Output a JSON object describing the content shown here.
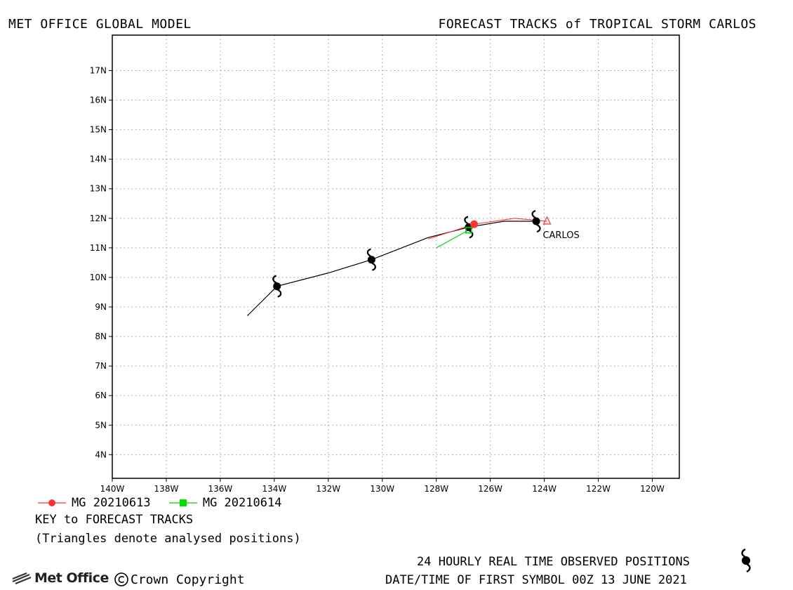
{
  "header": {
    "left_title": "MET OFFICE GLOBAL MODEL",
    "right_title": "FORECAST TRACKS of TROPICAL STORM CARLOS"
  },
  "chart_data": {
    "type": "line",
    "xlim": [
      -140,
      -119
    ],
    "ylim": [
      3.2,
      18.2
    ],
    "x_ticks": [
      -140,
      -138,
      -136,
      -134,
      -132,
      -130,
      -128,
      -126,
      -124,
      -122,
      -120
    ],
    "x_tick_labels": [
      "140W",
      "138W",
      "136W",
      "134W",
      "132W",
      "130W",
      "128W",
      "126W",
      "124W",
      "122W",
      "120W"
    ],
    "y_ticks": [
      4,
      5,
      6,
      7,
      8,
      9,
      10,
      11,
      12,
      13,
      14,
      15,
      16,
      17
    ],
    "y_tick_labels": [
      "4N",
      "5N",
      "6N",
      "7N",
      "8N",
      "9N",
      "10N",
      "11N",
      "12N",
      "13N",
      "14N",
      "15N",
      "16N",
      "17N"
    ],
    "grid": true,
    "observed_track": {
      "x": [
        -124.3,
        -125.5,
        -126.8,
        -128.3,
        -130.4,
        -132.0,
        -133.9,
        -135.0
      ],
      "y": [
        11.9,
        11.9,
        11.7,
        11.35,
        10.6,
        10.15,
        9.7,
        8.7
      ],
      "color": "#000000",
      "symbols": [
        {
          "x": -124.3,
          "y": 11.9
        },
        {
          "x": -126.8,
          "y": 11.7
        },
        {
          "x": -130.4,
          "y": 10.6
        },
        {
          "x": -133.9,
          "y": 9.7
        }
      ]
    },
    "series": [
      {
        "name": "MG 20210613",
        "color": "#ff3333",
        "marker": "circle",
        "x": [
          -123.9,
          -125.1,
          -126.6,
          -128.3
        ],
        "y": [
          11.9,
          12.0,
          11.8,
          11.3
        ],
        "initial": {
          "x": -126.6,
          "y": 11.8
        }
      },
      {
        "name": "MG 20210614",
        "color": "#00cc00",
        "marker": "square",
        "x": [
          -126.8,
          -128.0
        ],
        "y": [
          11.6,
          11.0
        ],
        "initial": {
          "x": -126.8,
          "y": 11.6
        }
      }
    ],
    "analysed_position": {
      "x": -123.9,
      "y": 11.9,
      "label": "CARLOS",
      "color": "#ff3333"
    }
  },
  "key": {
    "line1": "KEY to FORECAST TRACKS",
    "line2": "(Triangles denote analysed positions)"
  },
  "footer": {
    "observed": "24 HOURLY REAL TIME OBSERVED POSITIONS",
    "datetime": "DATE/TIME OF FIRST SYMBOL 00Z 13 JUNE 2021",
    "logo_text": "Met Office",
    "copyright": "Crown Copyright"
  },
  "icons": {
    "storm_symbol": "tropical-storm-icon",
    "logo": "met-office-logo-icon",
    "copyright": "copyright-icon"
  }
}
